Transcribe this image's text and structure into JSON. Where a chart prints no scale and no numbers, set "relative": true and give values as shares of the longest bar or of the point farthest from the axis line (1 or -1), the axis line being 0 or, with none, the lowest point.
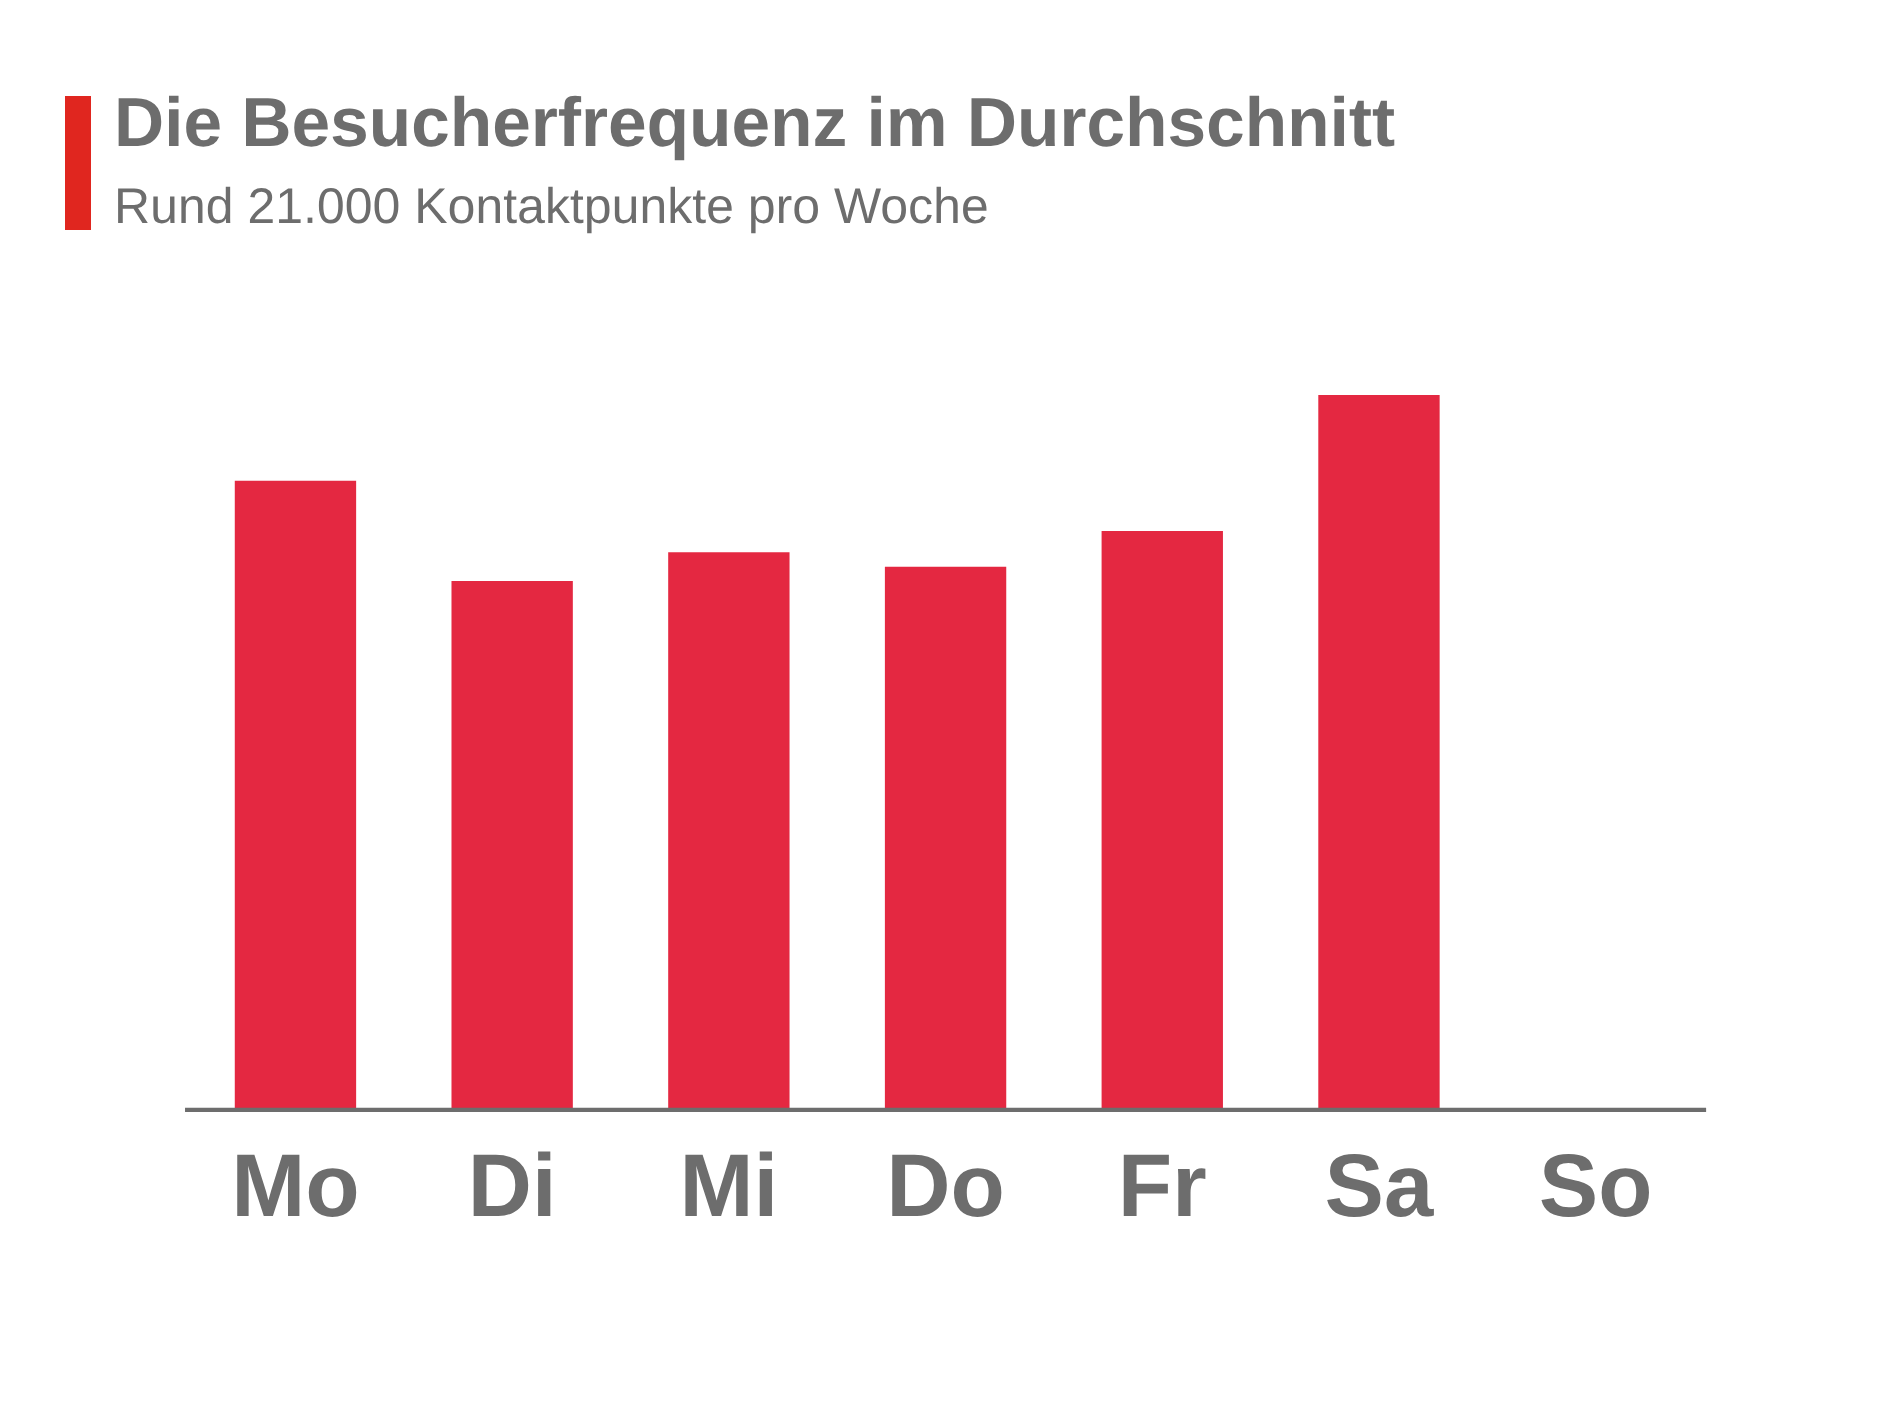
{
  "chart_data": {
    "type": "bar",
    "title": "Die Besucherfrequenz im Durchschnitt",
    "subtitle": "Rund 21.000 Kontaktpunkte pro Woche",
    "categories": [
      "Mo",
      "Di",
      "Mi",
      "Do",
      "Fr",
      "Sa",
      "So"
    ],
    "values": [
      0.88,
      0.74,
      0.78,
      0.76,
      0.81,
      1,
      0
    ],
    "color": "#e42841",
    "relative": true,
    "grid": false,
    "legend": false
  }
}
